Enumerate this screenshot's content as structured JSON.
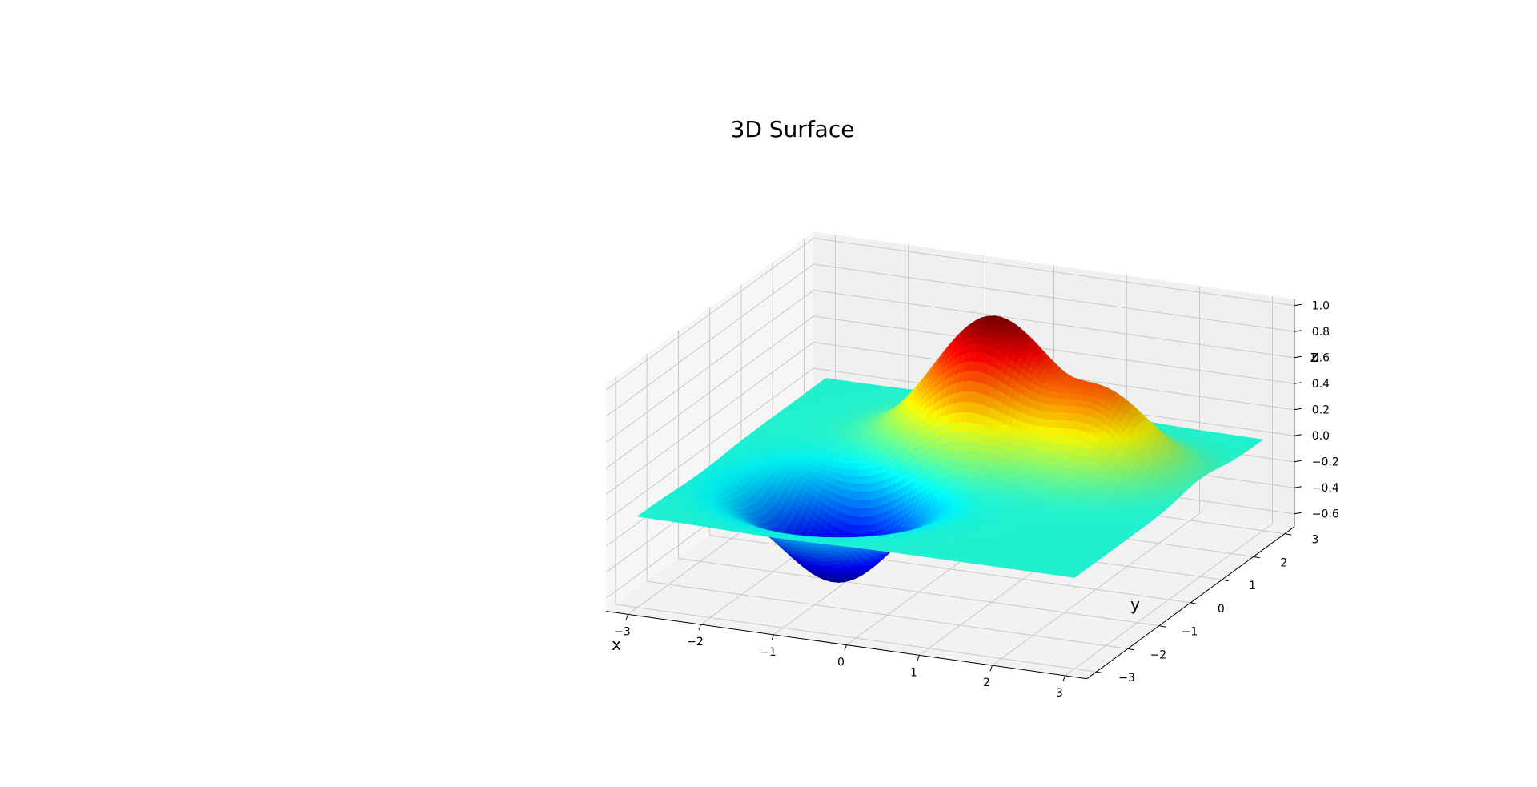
{
  "chart_data": {
    "type": "surface",
    "title": "3D Surface",
    "xlabel": "x",
    "ylabel": "y",
    "zlabel": "z",
    "xlim": [
      -3.3,
      3.3
    ],
    "ylim": [
      -3.3,
      3.3
    ],
    "zlim": [
      -0.7,
      1.05
    ],
    "x_ticks": [
      -3,
      -2,
      -1,
      0,
      1,
      2,
      3
    ],
    "y_ticks": [
      -3,
      -2,
      -1,
      0,
      1,
      2,
      3
    ],
    "z_ticks": [
      -0.6,
      -0.4,
      -0.2,
      0.0,
      0.2,
      0.4,
      0.6,
      0.8,
      1.0
    ],
    "x_tick_labels": [
      "−3",
      "−2",
      "−1",
      "0",
      "1",
      "2",
      "3"
    ],
    "y_tick_labels": [
      "−3",
      "−2",
      "−1",
      "0",
      "1",
      "2",
      "3"
    ],
    "z_tick_labels": [
      "−0.6",
      "−0.4",
      "−0.2",
      "0.0",
      "0.2",
      "0.4",
      "0.6",
      "0.8",
      "1.0"
    ],
    "grid": true,
    "colormap": "jet",
    "grid_resolution": 80,
    "domain": [
      -3.0,
      3.0
    ],
    "surface_components": [
      {
        "amplitude": 1.0,
        "x_center": 0.0,
        "y_center": 1.3,
        "sigma": 0.75
      },
      {
        "amplitude": 0.55,
        "x_center": 1.7,
        "y_center": 1.0,
        "sigma": 0.6
      },
      {
        "amplitude": -0.7,
        "x_center": -1.1,
        "y_center": -1.0,
        "sigma": 0.72
      }
    ],
    "colors": {
      "pane_back": "#f0f0f0",
      "pane_side": "#f6f6f6",
      "pane_floor": "#f2f2f2",
      "grid": "#c8c8c8",
      "axis": "#000000"
    }
  }
}
